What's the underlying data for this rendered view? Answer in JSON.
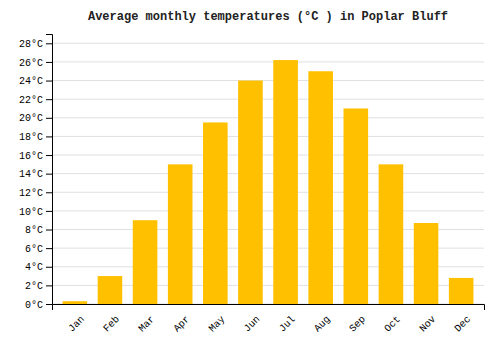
{
  "chart_data": {
    "type": "bar",
    "title": "Average monthly temperatures (°C ) in Poplar Bluff",
    "categories": [
      "Jan",
      "Feb",
      "Mar",
      "Apr",
      "May",
      "Jun",
      "Jul",
      "Aug",
      "Sep",
      "Oct",
      "Nov",
      "Dec"
    ],
    "values": [
      0.3,
      3.0,
      9.0,
      15.0,
      19.5,
      24.0,
      26.2,
      25.0,
      21.0,
      15.0,
      8.7,
      2.8
    ],
    "color": "#FFC000",
    "ylim": [
      0,
      29
    ],
    "yticks": [
      {
        "value": 0,
        "label": "0°C"
      },
      {
        "value": 2,
        "label": "2°C"
      },
      {
        "value": 4,
        "label": "4°C"
      },
      {
        "value": 6,
        "label": "6°C"
      },
      {
        "value": 8,
        "label": "8°C"
      },
      {
        "value": 10,
        "label": "10°C"
      },
      {
        "value": 12,
        "label": "12°C"
      },
      {
        "value": 14,
        "label": "14°C"
      },
      {
        "value": 16,
        "label": "16°C"
      },
      {
        "value": 18,
        "label": "18°C"
      },
      {
        "value": 20,
        "label": "20°C"
      },
      {
        "value": 22,
        "label": "22°C"
      },
      {
        "value": 24,
        "label": "24°C"
      },
      {
        "value": 26,
        "label": "26°C"
      },
      {
        "value": 28,
        "label": "28°C"
      }
    ],
    "grid": true
  }
}
